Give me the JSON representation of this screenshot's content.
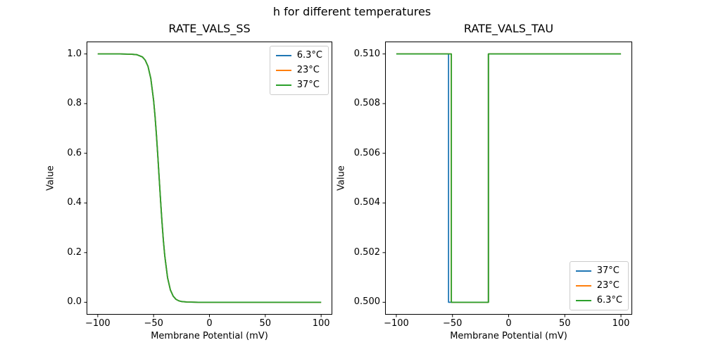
{
  "figure": {
    "title": "h for different temperatures",
    "background": "#ffffff"
  },
  "colors": {
    "matplotlib_blue": "#1f77b4",
    "matplotlib_orange": "#ff7f0e",
    "matplotlib_green": "#2ca02c",
    "spine": "#000000",
    "legend_border": "#cccccc"
  },
  "chart_data": [
    {
      "type": "line",
      "title": "RATE_VALS_SS",
      "xlabel": "Membrane Potential (mV)",
      "ylabel": "Value",
      "xlim": [
        -110,
        110
      ],
      "ylim": [
        -0.05,
        1.05
      ],
      "xticks": [
        -100,
        -50,
        0,
        50,
        100
      ],
      "xtick_labels": [
        "−100",
        "−50",
        "0",
        "50",
        "100"
      ],
      "yticks": [
        0.0,
        0.2,
        0.4,
        0.6,
        0.8,
        1.0
      ],
      "ytick_labels": [
        "0.0",
        "0.2",
        "0.4",
        "0.6",
        "0.8",
        "1.0"
      ],
      "grid": false,
      "legend_loc": "upper right",
      "note": "All three temperature curves overlap exactly; sigmoid falling from 1 to 0, midpoint near -45 mV",
      "x": [
        -100,
        -80,
        -70,
        -65,
        -60,
        -57.5,
        -55,
        -52.5,
        -50,
        -48.75,
        -47.5,
        -46.25,
        -45,
        -43.75,
        -42.5,
        -41.25,
        -40,
        -37.5,
        -35,
        -32.5,
        -30,
        -27.5,
        -25,
        -20,
        -10,
        0,
        25,
        50,
        75,
        100
      ],
      "series": [
        {
          "name": "6.3°C",
          "color": "#1f77b4",
          "y": [
            1.0,
            1.0,
            0.999,
            0.997,
            0.988,
            0.975,
            0.95,
            0.901,
            0.813,
            0.751,
            0.676,
            0.591,
            0.5,
            0.409,
            0.324,
            0.249,
            0.187,
            0.099,
            0.05,
            0.025,
            0.012,
            0.006,
            0.003,
            0.001,
            0.0,
            0.0,
            0.0,
            0.0,
            0.0,
            0.0
          ]
        },
        {
          "name": "23°C",
          "color": "#ff7f0e",
          "y": [
            1.0,
            1.0,
            0.999,
            0.997,
            0.988,
            0.975,
            0.95,
            0.901,
            0.813,
            0.751,
            0.676,
            0.591,
            0.5,
            0.409,
            0.324,
            0.249,
            0.187,
            0.099,
            0.05,
            0.025,
            0.012,
            0.006,
            0.003,
            0.001,
            0.0,
            0.0,
            0.0,
            0.0,
            0.0,
            0.0
          ]
        },
        {
          "name": "37°C",
          "color": "#2ca02c",
          "y": [
            1.0,
            1.0,
            0.999,
            0.997,
            0.988,
            0.975,
            0.95,
            0.901,
            0.813,
            0.751,
            0.676,
            0.591,
            0.5,
            0.409,
            0.324,
            0.249,
            0.187,
            0.099,
            0.05,
            0.025,
            0.012,
            0.006,
            0.003,
            0.001,
            0.0,
            0.0,
            0.0,
            0.0,
            0.0,
            0.0
          ]
        }
      ]
    },
    {
      "type": "line",
      "title": "RATE_VALS_TAU",
      "xlabel": "Membrane Potential (mV)",
      "ylabel": "Value",
      "xlim": [
        -110,
        110
      ],
      "ylim": [
        0.4995,
        0.5105
      ],
      "xticks": [
        -100,
        -50,
        0,
        50,
        100
      ],
      "xtick_labels": [
        "−100",
        "−50",
        "0",
        "50",
        "100"
      ],
      "yticks": [
        0.5,
        0.502,
        0.504,
        0.506,
        0.508,
        0.51
      ],
      "ytick_labels": [
        "0.500",
        "0.502",
        "0.504",
        "0.506",
        "0.508",
        "0.510"
      ],
      "grid": false,
      "legend_loc": "lower right",
      "note": "Step functions at 0.510 with a trough at 0.500; 37°C drops near -53.5 mV, 23°C and 6.3°C near -51 mV, all rise back near -18 mV",
      "series": [
        {
          "name": "37°C",
          "color": "#1f77b4",
          "x": [
            -100,
            -53.5,
            -53.5,
            -18,
            -18,
            100
          ],
          "y": [
            0.51,
            0.51,
            0.5,
            0.5,
            0.51,
            0.51
          ]
        },
        {
          "name": "23°C",
          "color": "#ff7f0e",
          "x": [
            -100,
            -51,
            -51,
            -18,
            -18,
            100
          ],
          "y": [
            0.51,
            0.51,
            0.5,
            0.5,
            0.51,
            0.51
          ]
        },
        {
          "name": "6.3°C",
          "color": "#2ca02c",
          "x": [
            -100,
            -51,
            -51,
            -18,
            -18,
            100
          ],
          "y": [
            0.51,
            0.51,
            0.5,
            0.5,
            0.51,
            0.51
          ]
        }
      ]
    }
  ]
}
